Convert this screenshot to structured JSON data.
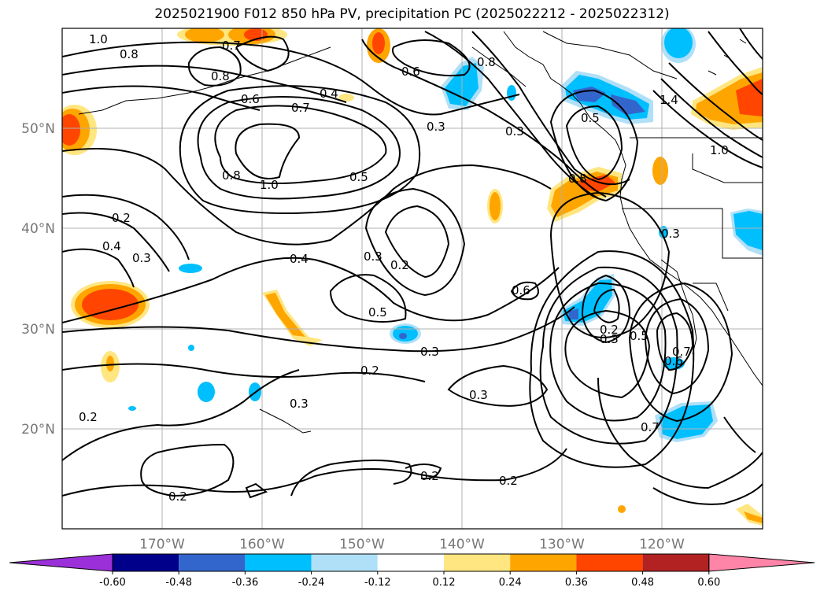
{
  "title": "2025021900 F012 850 hPa PV, precipitation PC (2025022212 - 2025022312)",
  "lat_labels": [
    "50°N",
    "40°N",
    "30°N",
    "20°N"
  ],
  "lon_labels": [
    "170°W",
    "160°W",
    "150°W",
    "140°W",
    "130°W",
    "120°W"
  ],
  "colorbar": {
    "colors": [
      "#9b30d9",
      "#00008b",
      "#3366cc",
      "#00bfff",
      "#b0e0f8",
      "#ffffff",
      "#ffe680",
      "#ffa500",
      "#ff4500",
      "#b22222",
      "#ff85a8"
    ],
    "labels": [
      "-0.60",
      "-0.48",
      "-0.36",
      "-0.24",
      "-0.12",
      "0.12",
      "0.24",
      "0.36",
      "0.48",
      "0.60"
    ]
  },
  "contour_labels": [
    "1.0",
    "0.8",
    "0.7",
    "0.8",
    "0.6",
    "0.7",
    "0.4",
    "0.6",
    "0.8",
    "0.3",
    "0.3",
    "0.5",
    "0.8",
    "1.0",
    "0.5",
    "0.8",
    "0.2",
    "0.4",
    "0.3",
    "0.4",
    "0.3",
    "0.2",
    "0.5",
    "0.6",
    "0.3",
    "0.2",
    "0.3",
    "0.3",
    "0.2",
    "0.5",
    "0.6",
    "0.7",
    "0.2",
    "0.2",
    "0.2",
    "0.7",
    "1.4",
    "1.0",
    "0.3",
    "0.3"
  ]
}
